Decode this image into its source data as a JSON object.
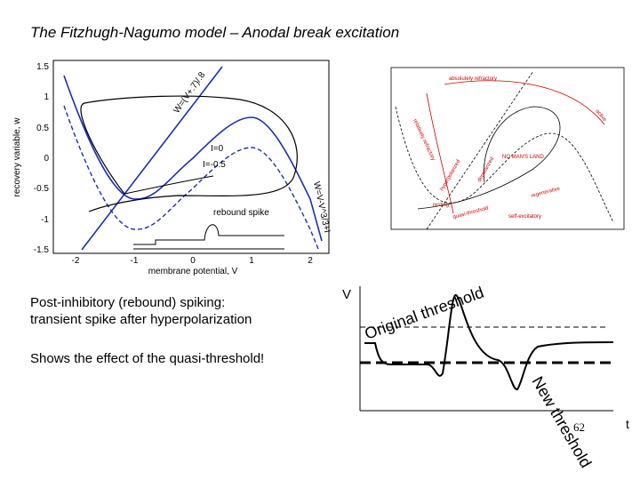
{
  "slide": {
    "title": "The Fitzhugh-Nagumo model – Anodal break excitation",
    "left_plot": {
      "ylabel": "recovery variable, w",
      "xlabel": "membrane potential, V",
      "xticks": [
        "-2",
        "-1",
        "0",
        "1",
        "2"
      ],
      "yticks": [
        "1.5",
        "1",
        "0.5",
        "0",
        "-0.5",
        "-1",
        "-1.5"
      ],
      "annotations": [
        "W=(V+.7)/.8",
        "I=0",
        "I=-0.5",
        "rebound spike",
        "W=V-V^3/3+I"
      ]
    },
    "right_plot": {
      "labels": [
        "absolutely refractory",
        "active",
        "relatively refractory",
        "hyperpolarized",
        "depolarized",
        "NO MAN'S LAND",
        "regenerative",
        "resting",
        "quasi-threshold",
        "self-excitatory"
      ]
    },
    "text": {
      "line1": "Post-inhibitory (rebound) spiking:",
      "line2": "transient spike after hyperpolarization",
      "line3": "Shows the effect of the quasi-threshold!"
    },
    "diagram": {
      "v_label": "V",
      "t_label": "t",
      "original": "Original threshold",
      "new": "New threshold"
    },
    "page_number": "62"
  }
}
